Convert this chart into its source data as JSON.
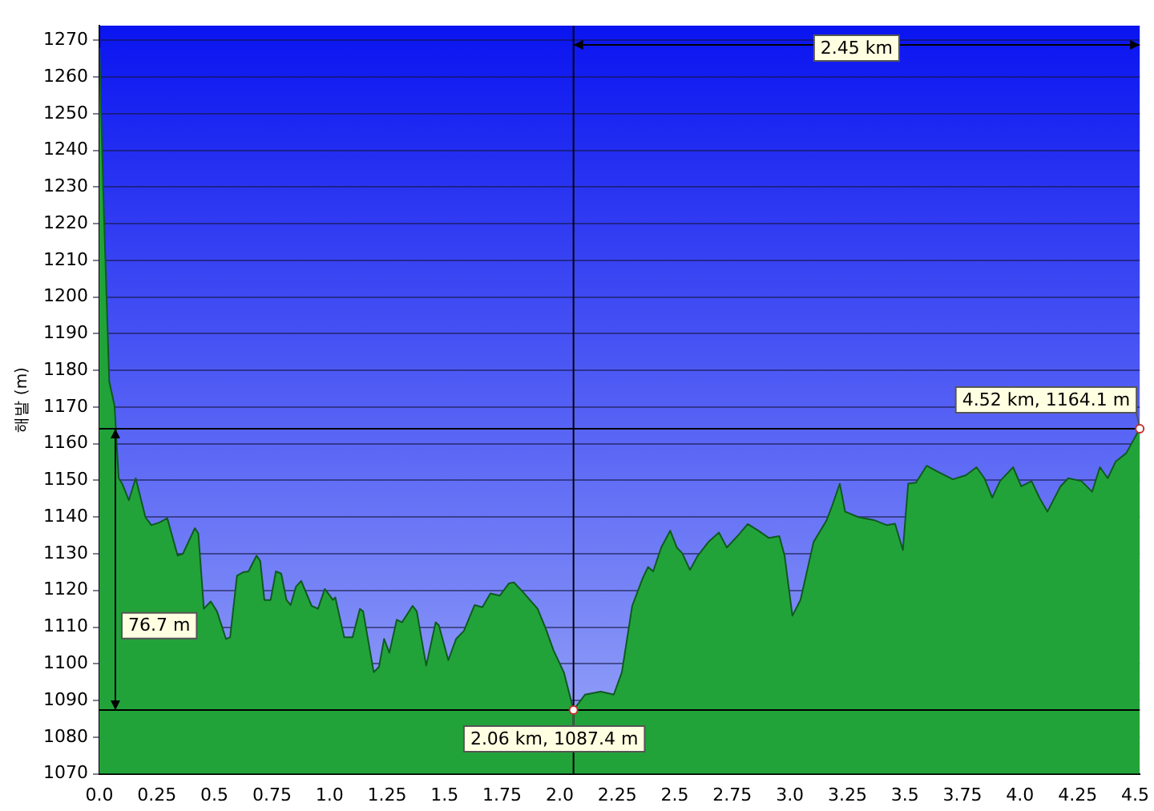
{
  "chart_data": {
    "type": "area",
    "ylabel": "해발 (m)",
    "x": [
      0,
      0.02,
      0.043,
      0.066,
      0.084,
      0.1,
      0.128,
      0.158,
      0.2,
      0.226,
      0.26,
      0.295,
      0.34,
      0.363,
      0.415,
      0.43,
      0.454,
      0.484,
      0.511,
      0.55,
      0.568,
      0.598,
      0.626,
      0.648,
      0.683,
      0.699,
      0.717,
      0.744,
      0.767,
      0.79,
      0.813,
      0.831,
      0.854,
      0.877,
      0.922,
      0.95,
      0.979,
      0.998,
      1.014,
      1.025,
      1.064,
      1.1,
      1.132,
      1.146,
      1.192,
      1.215,
      1.237,
      1.26,
      1.292,
      1.315,
      1.361,
      1.379,
      1.42,
      1.461,
      1.475,
      1.516,
      1.55,
      1.584,
      1.63,
      1.664,
      1.699,
      1.74,
      1.779,
      1.801,
      1.84,
      1.904,
      1.938,
      1.973,
      2.018,
      2.06,
      2.11,
      2.178,
      2.235,
      2.27,
      2.315,
      2.361,
      2.384,
      2.406,
      2.441,
      2.48,
      2.509,
      2.532,
      2.566,
      2.6,
      2.646,
      2.692,
      2.726,
      2.772,
      2.817,
      2.863,
      2.909,
      2.954,
      2.977,
      3.011,
      3.046,
      3.103,
      3.16,
      3.183,
      3.217,
      3.24,
      3.297,
      3.365,
      3.422,
      3.457,
      3.491,
      3.514,
      3.548,
      3.594,
      3.639,
      3.708,
      3.765,
      3.811,
      3.845,
      3.879,
      3.913,
      3.97,
      4.005,
      4.05,
      4.084,
      4.119,
      4.176,
      4.21,
      4.267,
      4.313,
      4.347,
      4.381,
      4.416,
      4.461,
      4.52
    ],
    "series": [
      {
        "color": "#22a33a",
        "values": [
          1268,
          1222.5,
          1177,
          1170.3,
          1150.6,
          1149,
          1144.6,
          1150.6,
          1140,
          1137.8,
          1138.5,
          1139.7,
          1129.5,
          1130,
          1137,
          1135.5,
          1115,
          1117,
          1114.3,
          1106.8,
          1107.2,
          1124,
          1125,
          1125.2,
          1129.5,
          1128,
          1117.4,
          1117.4,
          1125.2,
          1124.6,
          1117.4,
          1116,
          1121,
          1122.6,
          1115.8,
          1115,
          1120.4,
          1118.9,
          1117.4,
          1118.1,
          1107.2,
          1107.2,
          1115,
          1114.3,
          1097.7,
          1099.2,
          1106.8,
          1103,
          1112,
          1111.3,
          1115.8,
          1114.3,
          1099.5,
          1111.3,
          1110.5,
          1101,
          1106.8,
          1109,
          1116,
          1115.4,
          1119.2,
          1118.6,
          1121.9,
          1122.2,
          1119.6,
          1115,
          1109.8,
          1103.7,
          1097.7,
          1087.4,
          1091.6,
          1092.4,
          1091.6,
          1097.7,
          1115.8,
          1123.4,
          1126.4,
          1125.2,
          1131.7,
          1136.3,
          1131.7,
          1130.2,
          1125.6,
          1129.5,
          1133.2,
          1135.8,
          1131.7,
          1134.8,
          1138.1,
          1136.3,
          1134.3,
          1134.8,
          1129.5,
          1113.1,
          1117.4,
          1133.2,
          1139.2,
          1143,
          1149.1,
          1141.5,
          1140,
          1139.2,
          1137.8,
          1138.2,
          1131,
          1149.1,
          1149.4,
          1154,
          1152.5,
          1150.3,
          1151.4,
          1153.6,
          1150.6,
          1145.3,
          1149.8,
          1153.6,
          1148.4,
          1149.8,
          1145.3,
          1141.5,
          1148.4,
          1150.6,
          1149.8,
          1146.9,
          1153.6,
          1150.6,
          1155.2,
          1157.4,
          1164.1
        ]
      }
    ],
    "xlim": [
      0,
      4.52
    ],
    "ylim": [
      1070,
      1274
    ],
    "xticks": [
      {
        "value": 0,
        "label": "0.0"
      },
      0.25,
      0.5,
      0.75,
      {
        "value": 1,
        "label": "1.0"
      },
      1.25,
      1.5,
      1.75,
      {
        "value": 2,
        "label": "2.0"
      },
      2.25,
      2.5,
      2.75,
      {
        "value": 3,
        "label": "3.0"
      },
      3.25,
      3.5,
      3.75,
      {
        "value": 4,
        "label": "4.0"
      },
      4.25,
      4.5
    ],
    "yticks": [
      1070,
      1080,
      1090,
      1100,
      1110,
      1120,
      1130,
      1140,
      1150,
      1160,
      1170,
      1180,
      1190,
      1200,
      1210,
      1220,
      1230,
      1240,
      1250,
      1260,
      1270
    ],
    "grid": "y",
    "ref_lines": [
      {
        "axis": "x",
        "value": 2.06,
        "color": "#000000"
      },
      {
        "axis": "y",
        "value": 1087.4,
        "color": "#000000"
      },
      {
        "axis": "y",
        "value": 1164.1,
        "color": "#000000"
      }
    ],
    "annotations": [
      {
        "text": "2.06 km, 1087.4 m",
        "x": 2.06,
        "y": 1087.4
      },
      {
        "text": "4.52 km, 1164.1 m",
        "x": 4.52,
        "y": 1164.1
      },
      "2.45 km",
      "76.7 m"
    ]
  }
}
